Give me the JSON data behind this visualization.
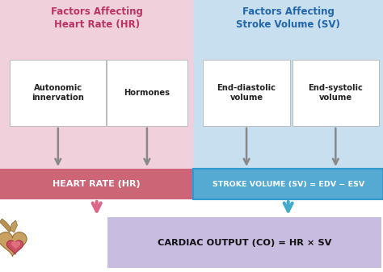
{
  "fig_width": 4.74,
  "fig_height": 3.37,
  "dpi": 100,
  "bg_color": "#ffffff",
  "left_bg_color": "#f0d0da",
  "right_bg_color": "#c8dff0",
  "hr_box_color": "#cc6677",
  "sv_box_color": "#55aad4",
  "sv_border_color": "#3399cc",
  "co_box_color": "#c8bce0",
  "left_title": "Factors Affecting\nHeart Rate (HR)",
  "right_title": "Factors Affecting\nStroke Volume (SV)",
  "left_title_color": "#bb3366",
  "right_title_color": "#2266aa",
  "box1_label": "Autonomic\ninnervation",
  "box2_label": "Hormones",
  "box3_label": "End-diastolic\nvolume",
  "box4_label": "End-systolic\nvolume",
  "hr_label": "HEART RATE (HR)",
  "sv_label": "STROKE VOLUME (SV) = EDV − ESV",
  "co_label": "CARDIAC OUTPUT (CO) = HR × SV",
  "arrow_color_pink": "#dd6688",
  "arrow_color_blue": "#44aacc",
  "arrow_color_gray": "#888888",
  "xlim": [
    0,
    4.74
  ],
  "ylim": [
    0,
    3.37
  ]
}
